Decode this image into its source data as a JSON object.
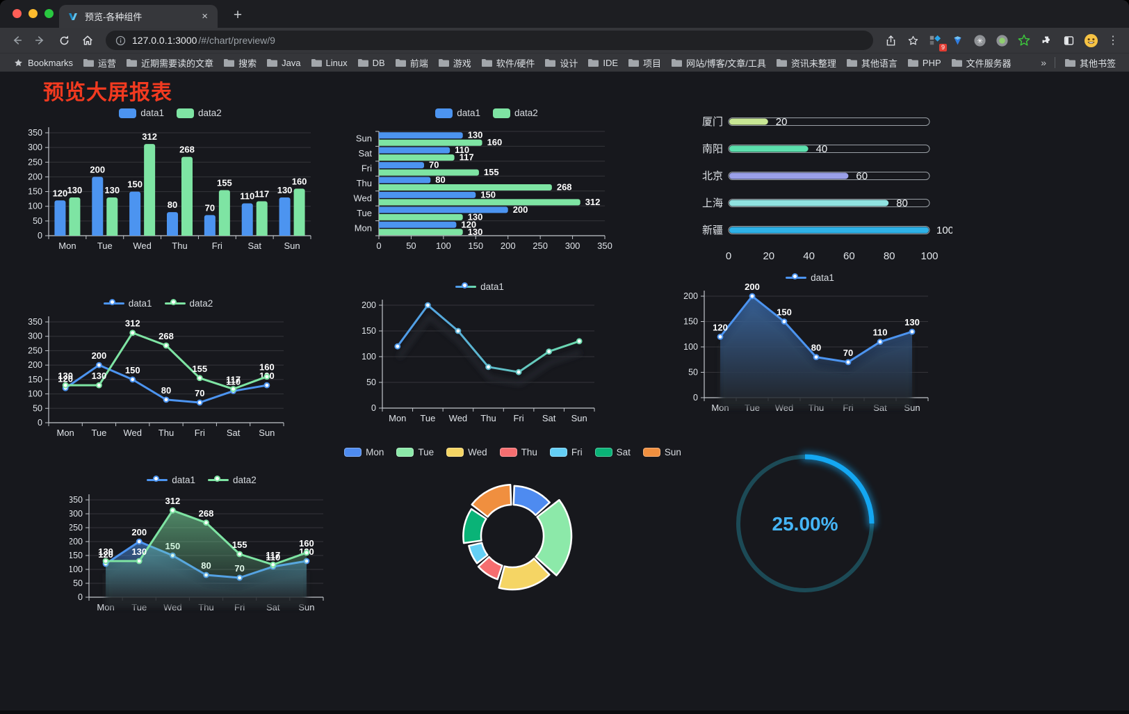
{
  "browser": {
    "tab": {
      "title": "预览-各种组件",
      "close_label": "×",
      "new_tab_label": "+"
    },
    "address": {
      "host": "127.0.0.1:3000",
      "path": "/#/chart/preview/9"
    },
    "extensions_badge": "9",
    "bookmarks_bar": {
      "bookmarks_label": "Bookmarks",
      "folders": [
        "运营",
        "近期需要读的文章",
        "搜索",
        "Java",
        "Linux",
        "DB",
        "前端",
        "游戏",
        "软件/硬件",
        "设计",
        "IDE",
        "项目",
        "网站/博客/文章/工具",
        "资讯未整理",
        "其他语言",
        "PHP",
        "文件服务器"
      ],
      "overflow_chevron": "»",
      "other_bookmarks": "其他书签"
    }
  },
  "page": {
    "title": "预览大屏报表"
  },
  "chart_data": {
    "categories": [
      "Mon",
      "Tue",
      "Wed",
      "Thu",
      "Fri",
      "Sat",
      "Sun"
    ],
    "series_common": [
      {
        "name": "data1",
        "color": "#4C94F0",
        "values": [
          120,
          200,
          150,
          80,
          70,
          110,
          130
        ]
      },
      {
        "name": "data2",
        "color": "#7EE4A3",
        "values": [
          130,
          130,
          312,
          268,
          155,
          117,
          160
        ]
      }
    ],
    "bar_vertical": {
      "type": "bar",
      "series": "both",
      "yMax": 350,
      "yTicks": [
        0,
        50,
        100,
        150,
        200,
        250,
        300,
        350
      ],
      "labels": true,
      "legend": "bar"
    },
    "bar_horizontal": {
      "type": "bar-horizontal",
      "series": "both",
      "xMax": 350,
      "xTicks": [
        0,
        50,
        100,
        150,
        200,
        250,
        300,
        350
      ],
      "labels": true,
      "legend": "bar"
    },
    "city_progress": {
      "type": "progress-bars",
      "max": 100,
      "xTicks": [
        0,
        20,
        40,
        60,
        80,
        100
      ],
      "items": [
        {
          "label": "厦门",
          "value": 20,
          "color": "#C8E794"
        },
        {
          "label": "南阳",
          "value": 40,
          "color": "#5CDFAD"
        },
        {
          "label": "北京",
          "value": 60,
          "color": "#9AA0E8"
        },
        {
          "label": "上海",
          "value": 80,
          "color": "#90E2E0"
        },
        {
          "label": "新疆",
          "value": 100,
          "color": "#2EB2E8"
        }
      ]
    },
    "line_basic": {
      "type": "line",
      "series": "both",
      "yMax": 350,
      "yTicks": [
        0,
        50,
        100,
        150,
        200,
        250,
        300,
        350
      ],
      "labels": true,
      "legend": "line"
    },
    "line_gradient": {
      "type": "line",
      "series": "data1",
      "yMax": 200,
      "yTicks": [
        0,
        50,
        100,
        150,
        200
      ],
      "labels": false,
      "legend": "line",
      "gradient": [
        "#4C94F0",
        "#6FE0A8"
      ],
      "shadow": "line"
    },
    "area_single": {
      "type": "line",
      "series": "data1",
      "yMax": 200,
      "yTicks": [
        0,
        50,
        100,
        150,
        200
      ],
      "labels": true,
      "legend": "line",
      "area": true,
      "shadow": "area"
    },
    "area_double": {
      "type": "line",
      "series": "both",
      "yMax": 350,
      "yTicks": [
        0,
        50,
        100,
        150,
        200,
        250,
        300,
        350
      ],
      "labels": true,
      "legend": "line",
      "area": true,
      "shadow": "area"
    },
    "rose_pie": {
      "type": "rose-donut",
      "legend": "pie",
      "slices": [
        {
          "label": "Mon",
          "value": 120,
          "color": "#4E8BF0"
        },
        {
          "label": "Tue",
          "value": 200,
          "color": "#8CE9A9"
        },
        {
          "label": "Wed",
          "value": 150,
          "color": "#F5D564"
        },
        {
          "label": "Thu",
          "value": 80,
          "color": "#F66E70"
        },
        {
          "label": "Fri",
          "value": 70,
          "color": "#64CFF5"
        },
        {
          "label": "Sat",
          "value": 110,
          "color": "#0AB377"
        },
        {
          "label": "Sun",
          "value": 130,
          "color": "#F08F3F"
        }
      ]
    },
    "ring_progress": {
      "type": "gauge-ring",
      "percent": 25,
      "display": "25.00%",
      "arc_color": "#14A7F2",
      "track_color": "#1C4A56",
      "text_color": "#45B5F7"
    }
  }
}
